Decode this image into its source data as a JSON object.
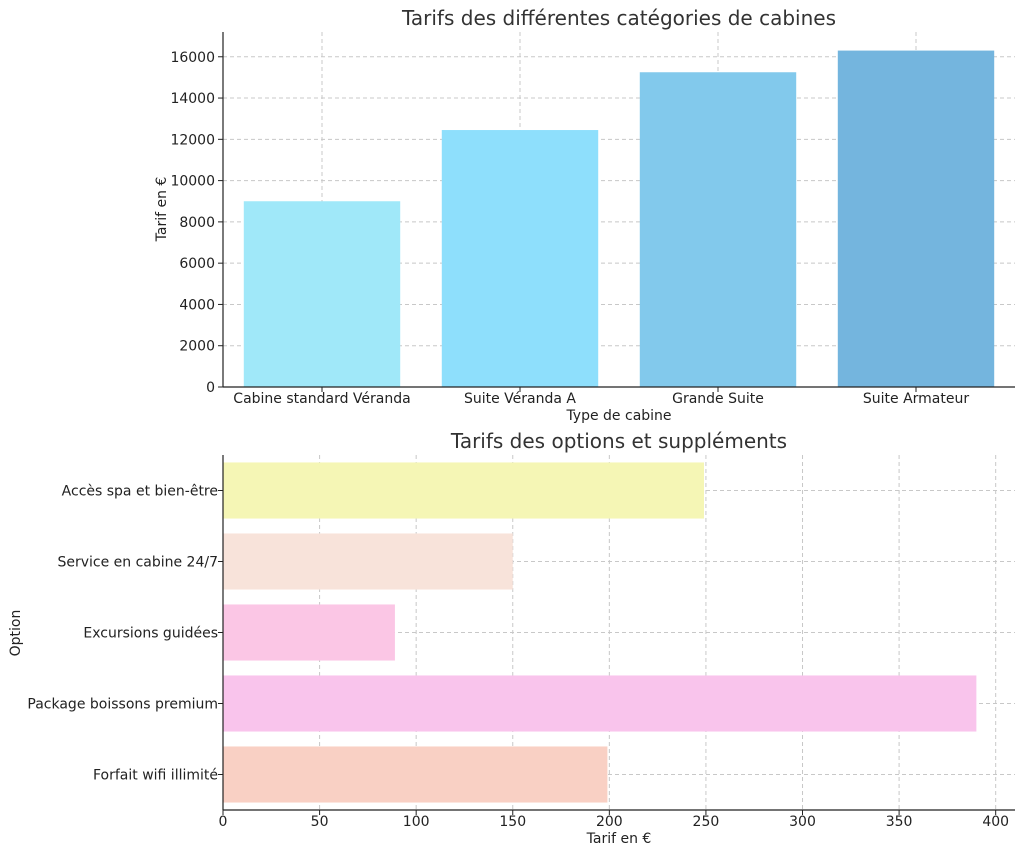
{
  "chart_data": [
    {
      "type": "bar",
      "orientation": "vertical",
      "title": "Tarifs des différentes catégories de cabines",
      "xlabel": "Type de cabine",
      "ylabel": "Tarif en €",
      "categories": [
        "Cabine standard Véranda",
        "Suite Véranda A",
        "Grande Suite",
        "Suite Armateur"
      ],
      "values": [
        9000,
        12450,
        15250,
        16300
      ],
      "colors": [
        "#a0e8f9",
        "#8edffc",
        "#82c9ec",
        "#74b5de"
      ],
      "ylim": [
        0,
        17200
      ],
      "yticks": [
        0,
        2000,
        4000,
        6000,
        8000,
        10000,
        12000,
        14000,
        16000
      ],
      "grid": true
    },
    {
      "type": "bar",
      "orientation": "horizontal",
      "title": "Tarifs des options et suppléments",
      "xlabel": "Tarif en €",
      "ylabel": "Option",
      "categories": [
        "Accès spa et bien-être",
        "Service en cabine 24/7",
        "Excursions guidées",
        "Package boissons premium",
        "Forfait wifi illimité"
      ],
      "values": [
        249,
        150,
        89,
        390,
        199
      ],
      "colors": [
        "#f5f6b5",
        "#f8e3da",
        "#fbc6e5",
        "#f9c4ec",
        "#f9d0c4"
      ],
      "xlim": [
        0,
        410
      ],
      "xticks": [
        0,
        50,
        100,
        150,
        200,
        250,
        300,
        350,
        400
      ],
      "grid": true
    }
  ]
}
